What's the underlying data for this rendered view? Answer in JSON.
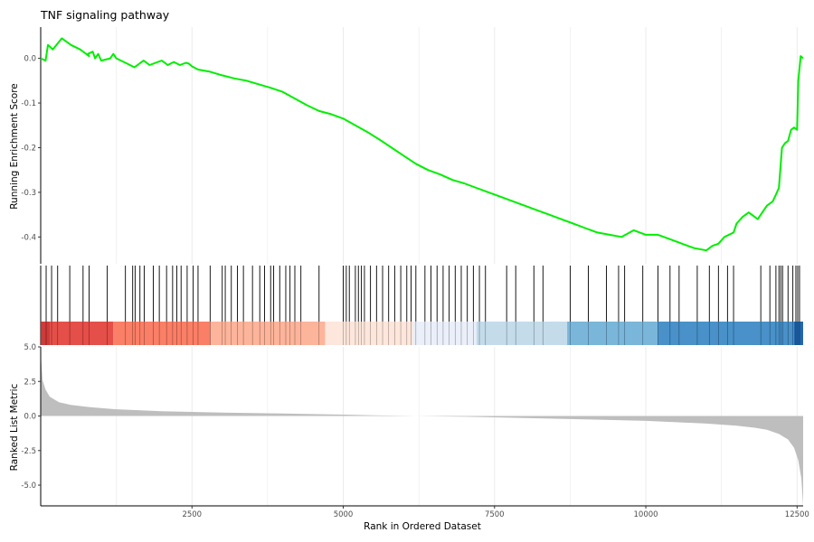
{
  "chart_data": {
    "type": "line",
    "title": "TNF signaling pathway",
    "xlabel": "Rank in Ordered Dataset",
    "xlim": [
      0,
      12600
    ],
    "x_ticks": [
      2500,
      5000,
      7500,
      10000,
      12500
    ],
    "x_tick_labels": [
      "2500",
      "5000",
      "7500",
      "10000",
      "12500"
    ],
    "grid": "vertical only",
    "line_color": "#00ee00",
    "enrichment": {
      "ylabel": "Running Enrichment Score",
      "ylim": [
        -0.46,
        0.07
      ],
      "y_ticks": [
        0.0,
        -0.1,
        -0.2,
        -0.3,
        -0.4
      ],
      "y_tick_labels": [
        "0.0",
        "-0.1",
        "-0.2",
        "-0.3",
        "-0.4"
      ],
      "x": [
        0,
        80,
        120,
        200,
        350,
        500,
        650,
        800,
        780,
        860,
        900,
        950,
        1000,
        1150,
        1200,
        1250,
        1400,
        1550,
        1650,
        1700,
        1750,
        1800,
        1900,
        2000,
        2050,
        2100,
        2200,
        2300,
        2400,
        2450,
        2500,
        2600,
        2800,
        3000,
        3200,
        3400,
        3600,
        3800,
        4000,
        4200,
        4400,
        4600,
        4800,
        5000,
        5200,
        5400,
        5600,
        5800,
        6000,
        6200,
        6400,
        6600,
        6800,
        7000,
        7200,
        7400,
        7600,
        7800,
        8000,
        8200,
        8400,
        8600,
        8800,
        9000,
        9200,
        9400,
        9600,
        9800,
        9900,
        10000,
        10200,
        10300,
        10400,
        10600,
        10800,
        11000,
        11100,
        11200,
        11300,
        11450,
        11500,
        11600,
        11700,
        11850,
        12000,
        12050,
        12100,
        12150,
        12200,
        12250,
        12300,
        12350,
        12400,
        12450,
        12500,
        12520,
        12560,
        12600
      ],
      "values": [
        0.0,
        -0.005,
        0.03,
        0.02,
        0.045,
        0.03,
        0.02,
        0.005,
        0.01,
        0.015,
        0.0,
        0.01,
        -0.005,
        0.0,
        0.01,
        0.0,
        -0.01,
        -0.02,
        -0.01,
        -0.005,
        -0.01,
        -0.015,
        -0.01,
        -0.005,
        -0.01,
        -0.015,
        -0.008,
        -0.015,
        -0.01,
        -0.012,
        -0.018,
        -0.025,
        -0.03,
        -0.038,
        -0.045,
        -0.05,
        -0.058,
        -0.066,
        -0.075,
        -0.09,
        -0.105,
        -0.118,
        -0.125,
        -0.135,
        -0.15,
        -0.165,
        -0.182,
        -0.2,
        -0.218,
        -0.236,
        -0.25,
        -0.26,
        -0.272,
        -0.28,
        -0.29,
        -0.3,
        -0.31,
        -0.32,
        -0.33,
        -0.34,
        -0.35,
        -0.36,
        -0.37,
        -0.38,
        -0.39,
        -0.395,
        -0.4,
        -0.385,
        -0.39,
        -0.395,
        -0.395,
        -0.4,
        -0.405,
        -0.415,
        -0.425,
        -0.43,
        -0.42,
        -0.415,
        -0.4,
        -0.39,
        -0.37,
        -0.355,
        -0.345,
        -0.36,
        -0.33,
        -0.325,
        -0.32,
        -0.305,
        -0.29,
        -0.2,
        -0.19,
        -0.185,
        -0.16,
        -0.155,
        -0.16,
        -0.05,
        0.005,
        0.0
      ]
    },
    "gene_hits": [
      90,
      180,
      280,
      480,
      700,
      800,
      1100,
      1400,
      1520,
      1560,
      1640,
      1710,
      1860,
      1960,
      2080,
      2180,
      2250,
      2320,
      2420,
      2520,
      2600,
      2800,
      3000,
      3050,
      3150,
      3250,
      3350,
      3500,
      3620,
      3700,
      3800,
      3850,
      3950,
      4050,
      4120,
      4200,
      4300,
      4600,
      5000,
      5050,
      5100,
      5200,
      5250,
      5300,
      5350,
      5450,
      5550,
      5650,
      5750,
      5850,
      5950,
      6050,
      6120,
      6200,
      6350,
      6450,
      6550,
      6650,
      6750,
      6850,
      6950,
      7050,
      7150,
      7250,
      7350,
      7700,
      7850,
      8150,
      8300,
      8750,
      9050,
      9350,
      9550,
      9650,
      9950,
      10200,
      10400,
      10550,
      10850,
      11050,
      11200,
      11350,
      11450,
      11900,
      12050,
      12150,
      12200,
      12230,
      12260,
      12350,
      12430,
      12480,
      12510,
      12540
    ],
    "color_bands": [
      {
        "from": 0,
        "to": 150,
        "color": "#c92a2a"
      },
      {
        "from": 150,
        "to": 1200,
        "color": "#e2403a"
      },
      {
        "from": 1200,
        "to": 2800,
        "color": "#f87459"
      },
      {
        "from": 2800,
        "to": 4700,
        "color": "#fcae93"
      },
      {
        "from": 4700,
        "to": 6150,
        "color": "#fde4d8"
      },
      {
        "from": 6150,
        "to": 7200,
        "color": "#e8eef8"
      },
      {
        "from": 7200,
        "to": 8700,
        "color": "#bfd8e8"
      },
      {
        "from": 8700,
        "to": 10200,
        "color": "#6fb0d6"
      },
      {
        "from": 10200,
        "to": 12450,
        "color": "#3a88c3"
      },
      {
        "from": 12450,
        "to": 12600,
        "color": "#115aa6"
      }
    ],
    "ranked_metric": {
      "ylabel": "Ranked List Metric",
      "ylim": [
        -6.5,
        5.0
      ],
      "y_ticks": [
        5.0,
        2.5,
        0.0,
        -2.5,
        -5.0
      ],
      "y_tick_labels": [
        "5.0",
        "2.5",
        "0.0",
        "-2.5",
        "-5.0"
      ],
      "fill_color": "#bebebe",
      "x": [
        0,
        30,
        80,
        150,
        300,
        500,
        800,
        1200,
        2000,
        3000,
        4000,
        5000,
        5500,
        6000,
        6200,
        7000,
        8000,
        9000,
        10000,
        10500,
        11000,
        11500,
        11800,
        12000,
        12200,
        12350,
        12450,
        12520,
        12570,
        12600
      ],
      "values": [
        4.6,
        2.6,
        1.9,
        1.4,
        1.0,
        0.8,
        0.65,
        0.5,
        0.35,
        0.25,
        0.18,
        0.1,
        0.05,
        0.02,
        0.0,
        -0.05,
        -0.15,
        -0.25,
        -0.35,
        -0.45,
        -0.55,
        -0.7,
        -0.85,
        -1.0,
        -1.3,
        -1.7,
        -2.3,
        -3.2,
        -4.5,
        -6.5
      ]
    }
  }
}
